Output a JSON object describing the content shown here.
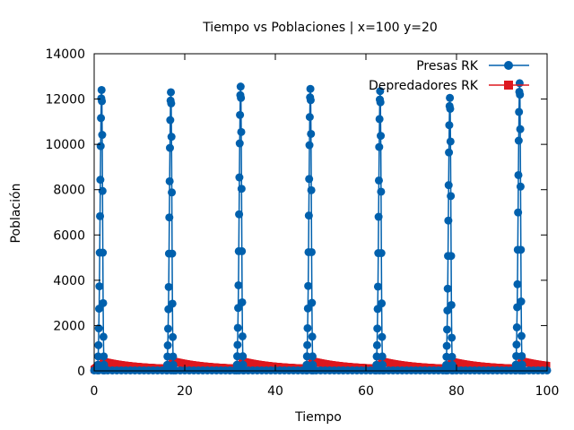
{
  "chart_data": {
    "type": "line",
    "title": "Tiempo vs Poblaciones | x=100 y=20",
    "xlabel": "Tiempo",
    "ylabel": "Población",
    "xlim": [
      0,
      100
    ],
    "ylim": [
      0,
      14000
    ],
    "x_ticks": [
      "0",
      "20",
      "40",
      "60",
      "80",
      "100"
    ],
    "y_ticks": [
      "0",
      "2000",
      "4000",
      "6000",
      "8000",
      "10000",
      "12000",
      "14000"
    ],
    "grid": false,
    "legend_position": "top-right",
    "period": 15.4,
    "series": [
      {
        "name": "Presas RK",
        "color": "#0060ad",
        "marker": "circle",
        "peaks": [
          {
            "x": 1.5,
            "y": 12400
          },
          {
            "x": 16.8,
            "y": 12300
          },
          {
            "x": 32.2,
            "y": 12550
          },
          {
            "x": 47.6,
            "y": 12450
          },
          {
            "x": 63.0,
            "y": 12350
          },
          {
            "x": 78.4,
            "y": 12050
          },
          {
            "x": 93.8,
            "y": 12700
          }
        ],
        "baseline": 20
      },
      {
        "name": "Depredadores RK",
        "color": "#dd181f",
        "marker": "square",
        "peaks": [
          {
            "x": 2.2,
            "y": 400
          },
          {
            "x": 17.5,
            "y": 420
          },
          {
            "x": 32.9,
            "y": 410
          },
          {
            "x": 48.3,
            "y": 420
          },
          {
            "x": 63.7,
            "y": 410
          },
          {
            "x": 79.1,
            "y": 400
          },
          {
            "x": 94.5,
            "y": 420
          }
        ],
        "trough": 60
      }
    ]
  }
}
